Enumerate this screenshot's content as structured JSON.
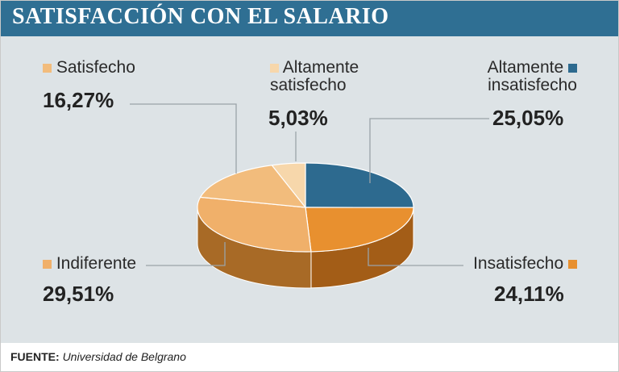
{
  "header": {
    "title": "SATISFACCIÓN CON EL SALARIO"
  },
  "chart_data": {
    "type": "pie",
    "title": "SATISFACCIÓN CON EL SALARIO",
    "slices": [
      {
        "label": "Altamente insatisfecho",
        "value": 25.05,
        "display": "25,05%",
        "color": "#2d6a8f",
        "side": "#1f4d6a"
      },
      {
        "label": "Insatisfecho",
        "value": 24.11,
        "display": "24,11%",
        "color": "#e8902f",
        "side": "#a35d17"
      },
      {
        "label": "Indiferente",
        "value": 29.51,
        "display": "29,51%",
        "color": "#f0b06a",
        "side": "#a86a26"
      },
      {
        "label": "Satisfecho",
        "value": 16.27,
        "display": "16,27%",
        "color": "#f2bc7c",
        "side": "#b07533"
      },
      {
        "label": "Altamente satisfecho",
        "value": 5.03,
        "display": "5,03%",
        "color": "#f7d7ab",
        "side": "#c69c66"
      }
    ]
  },
  "legend": {
    "satisfecho": "Satisfecho",
    "altamente_satisfecho_1": "Altamente",
    "altamente_satisfecho_2": "satisfecho",
    "altamente_insatisfecho_1": "Altamente",
    "altamente_insatisfecho_2": "insatisfecho",
    "indiferente": "Indiferente",
    "insatisfecho": "Insatisfecho"
  },
  "values": {
    "satisfecho": "16,27%",
    "altamente_satisfecho": "5,03%",
    "altamente_insatisfecho": "25,05%",
    "indiferente": "29,51%",
    "insatisfecho": "24,11%"
  },
  "footer": {
    "source_label": "FUENTE:",
    "source_value": "Universidad de Belgrano"
  }
}
